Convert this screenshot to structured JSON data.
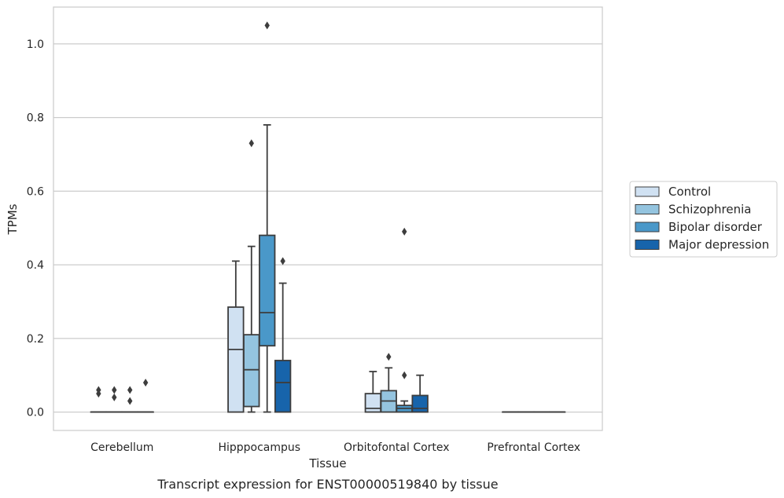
{
  "caption": "Transcript expression for ENST00000519840 by tissue",
  "chart_data": {
    "type": "boxplot",
    "xlabel": "Tissue",
    "ylabel": "TPMs",
    "ylim": [
      -0.05,
      1.1
    ],
    "yticks": [
      0.0,
      0.2,
      0.4,
      0.6,
      0.8,
      1.0
    ],
    "ytick_labels": [
      "0.0",
      "0.2",
      "0.4",
      "0.6",
      "0.8",
      "1.0"
    ],
    "grid": "horizontal",
    "legend_position": "right",
    "categories": [
      "Cerebellum",
      "Hipppocampus",
      "Orbitofontal Cortex",
      "Prefrontal Cortex"
    ],
    "series": [
      {
        "name": "Control",
        "color": "#d0e1f2",
        "boxes": [
          {
            "q1": 0,
            "median": 0,
            "q3": 0,
            "low": 0,
            "high": 0,
            "outliers": [
              0.05,
              0.06
            ]
          },
          {
            "q1": 0,
            "median": 0.17,
            "q3": 0.285,
            "low": 0,
            "high": 0.41,
            "outliers": []
          },
          {
            "q1": 0,
            "median": 0.01,
            "q3": 0.05,
            "low": 0,
            "high": 0.11,
            "outliers": []
          },
          {
            "q1": 0,
            "median": 0,
            "q3": 0,
            "low": 0,
            "high": 0,
            "outliers": []
          }
        ]
      },
      {
        "name": "Schizophrenia",
        "color": "#94c4df",
        "boxes": [
          {
            "q1": 0,
            "median": 0,
            "q3": 0,
            "low": 0,
            "high": 0,
            "outliers": [
              0.04,
              0.06
            ]
          },
          {
            "q1": 0.015,
            "median": 0.115,
            "q3": 0.21,
            "low": 0,
            "high": 0.45,
            "outliers": [
              0.73
            ]
          },
          {
            "q1": 0,
            "median": 0.03,
            "q3": 0.058,
            "low": 0,
            "high": 0.12,
            "outliers": [
              0.15
            ]
          },
          {
            "q1": 0,
            "median": 0,
            "q3": 0,
            "low": 0,
            "high": 0,
            "outliers": []
          }
        ]
      },
      {
        "name": "Bipolar disorder",
        "color": "#4a98c9",
        "boxes": [
          {
            "q1": 0,
            "median": 0,
            "q3": 0,
            "low": 0,
            "high": 0,
            "outliers": [
              0.03,
              0.06
            ]
          },
          {
            "q1": 0.18,
            "median": 0.27,
            "q3": 0.48,
            "low": 0,
            "high": 0.78,
            "outliers": [
              1.05
            ]
          },
          {
            "q1": 0,
            "median": 0.01,
            "q3": 0.018,
            "low": 0,
            "high": 0.03,
            "outliers": [
              0.1,
              0.49
            ]
          },
          {
            "q1": 0,
            "median": 0,
            "q3": 0,
            "low": 0,
            "high": 0,
            "outliers": []
          }
        ]
      },
      {
        "name": "Major depression",
        "color": "#1764ab",
        "boxes": [
          {
            "q1": 0,
            "median": 0,
            "q3": 0,
            "low": 0,
            "high": 0,
            "outliers": [
              0.08
            ]
          },
          {
            "q1": 0,
            "median": 0.08,
            "q3": 0.14,
            "low": 0,
            "high": 0.35,
            "outliers": [
              0.41
            ]
          },
          {
            "q1": 0,
            "median": 0.01,
            "q3": 0.045,
            "low": 0,
            "high": 0.1,
            "outliers": []
          },
          {
            "q1": 0,
            "median": 0,
            "q3": 0,
            "low": 0,
            "high": 0,
            "outliers": []
          }
        ]
      }
    ]
  }
}
